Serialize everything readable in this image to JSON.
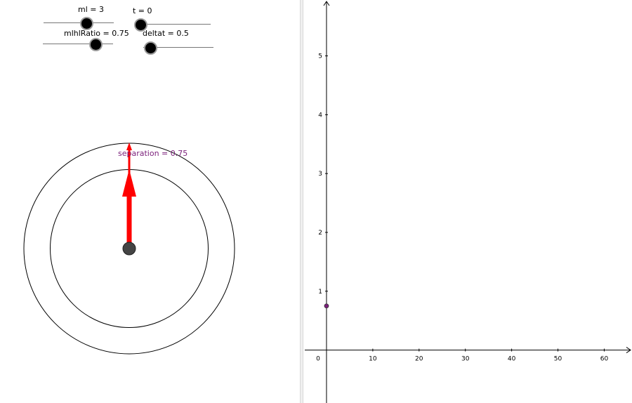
{
  "sliders": [
    {
      "label": "ml = 3"
    },
    {
      "label": "t = 0"
    },
    {
      "label": "mlhlRatio = 0.75"
    },
    {
      "label": "deltat = 0.5"
    }
  ],
  "left_view": {
    "separation_label": "separation = 0.75",
    "colors": {
      "arrow": "#ff0000",
      "center_point": "#444444",
      "label": "#7a1f7a",
      "circles": "#000000"
    }
  },
  "chart_data": {
    "type": "scatter",
    "xlim": [
      -5,
      66
    ],
    "ylim": [
      -0.9,
      5.95
    ],
    "x_ticks": [
      0,
      10,
      20,
      30,
      40,
      50,
      60
    ],
    "y_ticks": [
      1,
      2,
      3,
      4,
      5
    ],
    "grid": false,
    "series": [
      {
        "points": [
          {
            "x": 0,
            "y": 0.75
          }
        ],
        "color": "#7a1f7a"
      }
    ]
  }
}
